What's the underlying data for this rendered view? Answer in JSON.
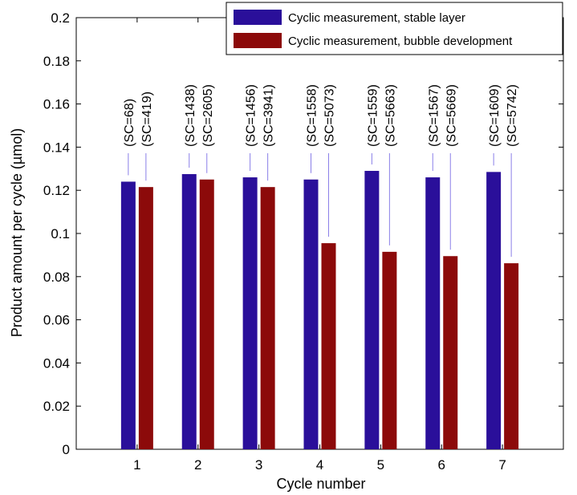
{
  "chart_data": {
    "type": "bar",
    "xlabel": "Cycle number",
    "ylabel": "Product amount per cycle (µmol)",
    "ylim": [
      0,
      0.2
    ],
    "y_ticks": [
      "0",
      "0.02",
      "0.04",
      "0.06",
      "0.08",
      "0.1",
      "0.12",
      "0.14",
      "0.16",
      "0.18",
      "0.2"
    ],
    "y_tick_values": [
      0,
      0.02,
      0.04,
      0.06,
      0.08,
      0.1,
      0.12,
      0.14,
      0.16,
      0.18,
      0.2
    ],
    "categories": [
      "1",
      "2",
      "3",
      "4",
      "5",
      "6",
      "7"
    ],
    "legend_position": "top-right",
    "grid": false,
    "series": [
      {
        "name": "Cyclic measurement, stable layer",
        "color": "#2a0f9a",
        "values": [
          0.124,
          0.1275,
          0.126,
          0.125,
          0.129,
          0.126,
          0.1285
        ],
        "labels": [
          "(SC=68)",
          "(SC=1438)",
          "(SC=1456)",
          "(SC=1558)",
          "(SC=1559)",
          "(SC=1567)",
          "(SC=1609)"
        ]
      },
      {
        "name": "Cyclic measurement, bubble development",
        "color": "#8c0a0a",
        "values": [
          0.1215,
          0.125,
          0.1215,
          0.0955,
          0.0915,
          0.0895,
          0.0862
        ],
        "labels": [
          "(SC=419)",
          "(SC=2605)",
          "(SC=3941)",
          "(SC=5073)",
          "(SC=5663)",
          "(SC=5669)",
          "(SC=5742)"
        ]
      }
    ]
  }
}
